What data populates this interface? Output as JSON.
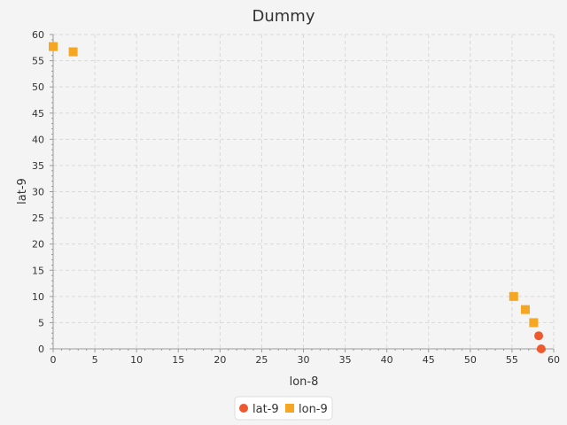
{
  "chart_data": {
    "type": "scatter",
    "title": "Dummy",
    "xlabel": "lon-8",
    "ylabel": "lat-9",
    "xlim": [
      0,
      60
    ],
    "ylim": [
      0,
      60
    ],
    "xticks": [
      0,
      5,
      10,
      15,
      20,
      25,
      30,
      35,
      40,
      45,
      50,
      55,
      60
    ],
    "yticks": [
      0,
      5,
      10,
      15,
      20,
      25,
      30,
      35,
      40,
      45,
      50,
      55,
      60
    ],
    "grid": true,
    "legend_position": "bottom",
    "series": [
      {
        "name": "lat-9",
        "color": "#ee5a2e",
        "marker": "circle",
        "points": [
          [
            58.2,
            2.5
          ],
          [
            58.5,
            0
          ]
        ]
      },
      {
        "name": "lon-9",
        "color": "#f5a623",
        "marker": "square",
        "points": [
          [
            0,
            57.7
          ],
          [
            2.4,
            56.7
          ],
          [
            55.2,
            10.0
          ],
          [
            56.6,
            7.5
          ],
          [
            57.6,
            5.0
          ]
        ]
      }
    ]
  }
}
